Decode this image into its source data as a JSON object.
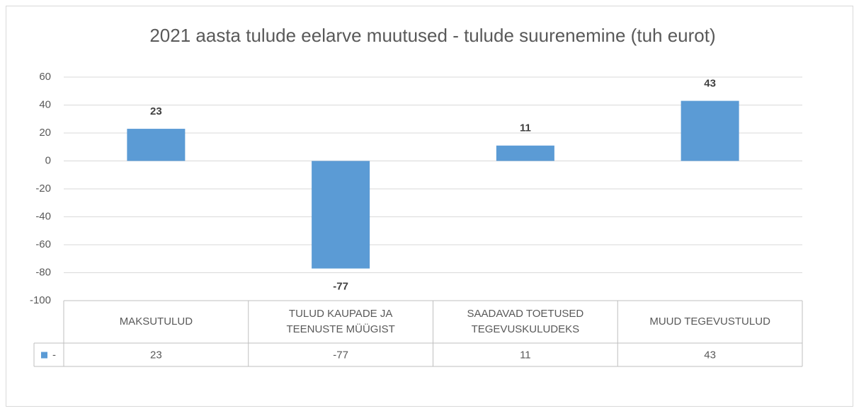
{
  "chart_data": {
    "type": "bar",
    "title": "2021 aasta tulude eelarve muutused - tulude suurenemine (tuh eurot)",
    "categories": [
      "MAKSUTULUD",
      "TULUD KAUPADE JA TEENUSTE MÜÜGIST",
      "SAADAVAD TOETUSED TEGEVUSKULUDEKS",
      "MUUD TEGEVUSTULUD"
    ],
    "series": [
      {
        "name": "-",
        "color": "#5b9bd5",
        "values": [
          23,
          -77,
          11,
          43
        ]
      }
    ],
    "ylim": [
      -100,
      60
    ],
    "yticks": [
      -100,
      -80,
      -60,
      -40,
      -20,
      0,
      20,
      40,
      60
    ],
    "grid": true
  }
}
